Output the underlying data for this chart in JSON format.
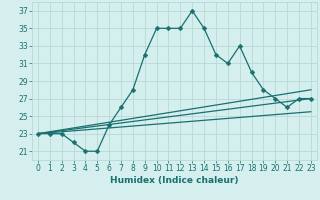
{
  "xlabel": "Humidex (Indice chaleur)",
  "background_color": "#d5eeee",
  "grid_color": "#b8d8d8",
  "line_color": "#1a7070",
  "xlim": [
    -0.5,
    23.5
  ],
  "ylim": [
    20.0,
    38.0
  ],
  "yticks": [
    21,
    23,
    25,
    27,
    29,
    31,
    33,
    35,
    37
  ],
  "xticks": [
    0,
    1,
    2,
    3,
    4,
    5,
    6,
    7,
    8,
    9,
    10,
    11,
    12,
    13,
    14,
    15,
    16,
    17,
    18,
    19,
    20,
    21,
    22,
    23
  ],
  "series1_x": [
    0,
    1,
    2,
    3,
    4,
    5,
    6,
    7,
    8,
    9,
    10,
    11,
    12,
    13,
    14,
    15,
    16,
    17,
    18,
    19,
    20,
    21,
    22,
    23
  ],
  "series1_y": [
    23,
    23,
    23,
    22,
    21,
    21,
    24,
    26,
    28,
    32,
    35,
    35,
    35,
    37,
    35,
    32,
    31,
    33,
    30,
    28,
    27,
    26,
    27,
    27
  ],
  "series2_x": [
    0,
    23
  ],
  "series2_y": [
    23,
    28
  ],
  "series3_x": [
    0,
    23
  ],
  "series3_y": [
    23,
    27
  ],
  "series4_x": [
    0,
    23
  ],
  "series4_y": [
    23,
    25.5
  ],
  "markersize": 2.5,
  "linewidth": 0.9,
  "xlabel_fontsize": 6.5,
  "tick_fontsize": 5.5
}
